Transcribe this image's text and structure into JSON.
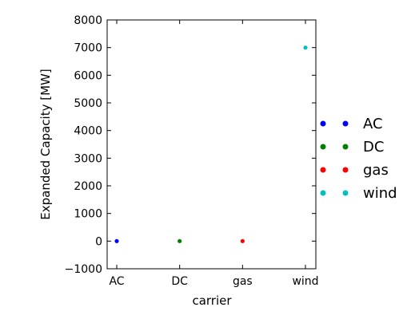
{
  "chart_data": {
    "type": "scatter",
    "xlabel": "carrier",
    "ylabel": "Expanded Capacity [MW]",
    "categories": [
      "AC",
      "DC",
      "gas",
      "wind"
    ],
    "ylim": [
      -1000,
      8000
    ],
    "yticks": [
      -1000,
      0,
      1000,
      2000,
      3000,
      4000,
      5000,
      6000,
      7000,
      8000
    ],
    "ytick_labels": [
      "−1000",
      "0",
      "1000",
      "2000",
      "3000",
      "4000",
      "5000",
      "6000",
      "7000",
      "8000"
    ],
    "grid": false,
    "legend_position": "center-right, outside plot",
    "series": [
      {
        "name": "AC",
        "color": "#0000ff",
        "points": [
          {
            "x": "AC",
            "y": 0
          }
        ]
      },
      {
        "name": "DC",
        "color": "#008000",
        "points": [
          {
            "x": "DC",
            "y": 0
          }
        ]
      },
      {
        "name": "gas",
        "color": "#ff0000",
        "points": [
          {
            "x": "gas",
            "y": 0
          }
        ]
      },
      {
        "name": "wind",
        "color": "#00bfbf",
        "points": [
          {
            "x": "wind",
            "y": 7000
          }
        ]
      }
    ]
  }
}
